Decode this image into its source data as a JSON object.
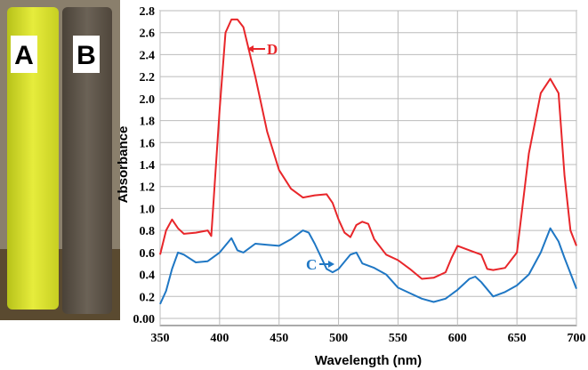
{
  "photo": {
    "labels": [
      "A",
      "B"
    ]
  },
  "chart_data": {
    "type": "line",
    "xlabel": "Wavelength (nm)",
    "ylabel": "Absorbance",
    "xlim": [
      350,
      700
    ],
    "xticks": [
      350,
      400,
      450,
      500,
      550,
      600,
      650,
      700
    ],
    "ylim": [
      0,
      2.8
    ],
    "yticks": [
      {
        "value": 0,
        "label": "0.00"
      },
      0.2,
      0.4,
      0.6,
      0.8,
      {
        "value": 1,
        "label": "1.0"
      },
      1.2,
      1.4,
      1.6,
      1.8,
      {
        "value": 2,
        "label": "2.0"
      },
      2.2,
      2.4,
      2.6,
      2.8
    ],
    "grid": true,
    "series": [
      {
        "name": "D",
        "color": "#e8262a",
        "x": [
          350,
          355,
          360,
          365,
          370,
          380,
          390,
          393,
          400,
          405,
          410,
          415,
          420,
          430,
          440,
          450,
          460,
          470,
          480,
          490,
          495,
          500,
          505,
          510,
          515,
          520,
          525,
          530,
          540,
          550,
          560,
          570,
          580,
          590,
          595,
          600,
          610,
          620,
          625,
          630,
          640,
          650,
          660,
          670,
          678,
          685,
          690,
          695,
          700
        ],
        "values": [
          0.58,
          0.8,
          0.9,
          0.82,
          0.77,
          0.78,
          0.8,
          0.75,
          1.9,
          2.6,
          2.72,
          2.72,
          2.65,
          2.2,
          1.7,
          1.35,
          1.18,
          1.1,
          1.12,
          1.13,
          1.05,
          0.9,
          0.78,
          0.74,
          0.85,
          0.88,
          0.86,
          0.72,
          0.58,
          0.53,
          0.45,
          0.36,
          0.37,
          0.42,
          0.55,
          0.66,
          0.62,
          0.58,
          0.45,
          0.44,
          0.46,
          0.6,
          1.5,
          2.05,
          2.18,
          2.05,
          1.3,
          0.8,
          0.66
        ]
      },
      {
        "name": "C",
        "color": "#1f77c4",
        "x": [
          350,
          355,
          360,
          365,
          370,
          380,
          390,
          400,
          410,
          415,
          420,
          430,
          440,
          450,
          460,
          470,
          475,
          480,
          490,
          495,
          500,
          510,
          515,
          520,
          530,
          540,
          550,
          560,
          570,
          580,
          590,
          600,
          610,
          615,
          620,
          630,
          640,
          650,
          660,
          670,
          678,
          685,
          690,
          700
        ],
        "values": [
          0.13,
          0.25,
          0.45,
          0.6,
          0.58,
          0.51,
          0.52,
          0.6,
          0.73,
          0.62,
          0.6,
          0.68,
          0.67,
          0.66,
          0.72,
          0.8,
          0.78,
          0.68,
          0.45,
          0.42,
          0.45,
          0.58,
          0.6,
          0.5,
          0.46,
          0.4,
          0.28,
          0.23,
          0.18,
          0.15,
          0.18,
          0.26,
          0.36,
          0.38,
          0.33,
          0.2,
          0.24,
          0.3,
          0.4,
          0.6,
          0.82,
          0.7,
          0.55,
          0.27
        ]
      }
    ]
  }
}
